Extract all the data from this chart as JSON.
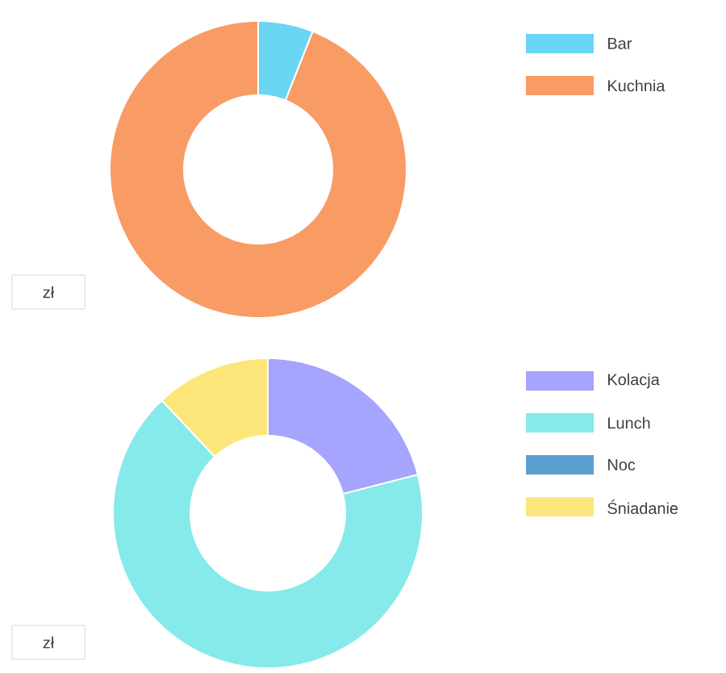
{
  "chart_data": [
    {
      "type": "donut",
      "categories": [
        "Bar",
        "Kuchnia"
      ],
      "values": [
        6,
        94
      ],
      "colors": [
        "#6ad5f5",
        "#f99b65"
      ],
      "legend": "top right",
      "annotations": [
        "zł"
      ]
    },
    {
      "type": "donut",
      "categories": [
        "Kolacja",
        "Lunch",
        "Noc",
        "Śniadanie"
      ],
      "values": [
        21,
        67,
        0,
        12
      ],
      "colors": [
        "#a5a5fd",
        "#86e9ea",
        "#5b9fd0",
        "#fde679"
      ],
      "legend": "top right",
      "annotations": [
        "zł"
      ]
    }
  ]
}
